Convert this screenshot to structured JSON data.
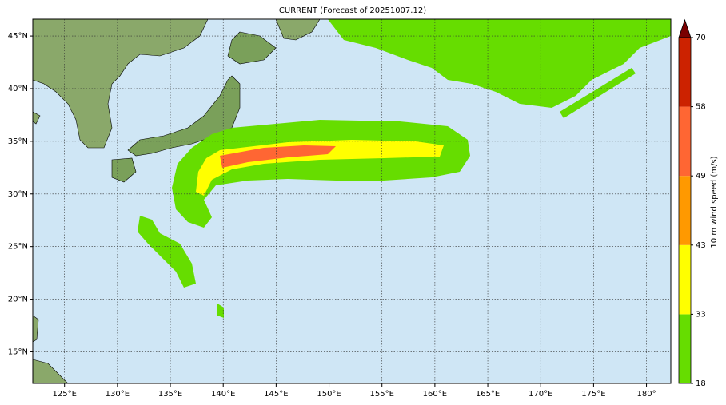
{
  "title": "CURRENT (Forecast of 20251007.12)",
  "map": {
    "lonlim": [
      122,
      182.3
    ],
    "latlim": [
      12,
      46.6
    ],
    "lon_ticks": [
      {
        "value": 125,
        "label": "125°E"
      },
      {
        "value": 130,
        "label": "130°E"
      },
      {
        "value": 135,
        "label": "135°E"
      },
      {
        "value": 140,
        "label": "140°E"
      },
      {
        "value": 145,
        "label": "145°E"
      },
      {
        "value": 150,
        "label": "150°E"
      },
      {
        "value": 155,
        "label": "155°E"
      },
      {
        "value": 160,
        "label": "160°E"
      },
      {
        "value": 165,
        "label": "165°E"
      },
      {
        "value": 170,
        "label": "170°E"
      },
      {
        "value": 175,
        "label": "175°E"
      },
      {
        "value": 180,
        "label": "180°"
      }
    ],
    "lat_ticks": [
      {
        "value": 15,
        "label": "15°N"
      },
      {
        "value": 20,
        "label": "20°N"
      },
      {
        "value": 25,
        "label": "25°N"
      },
      {
        "value": 30,
        "label": "30°N"
      },
      {
        "value": 35,
        "label": "35°N"
      },
      {
        "value": 40,
        "label": "40°N"
      },
      {
        "value": 45,
        "label": "45°N"
      }
    ],
    "grid": true
  },
  "colorbar": {
    "label": "10 m wind speed (m/s)",
    "ticks": [
      18,
      33,
      43,
      49,
      58,
      70
    ],
    "colors": [
      "#66dd00",
      "#ffff00",
      "#ff9900",
      "#ff6633",
      "#cc2200"
    ],
    "extend_color": "#7a0000"
  }
}
